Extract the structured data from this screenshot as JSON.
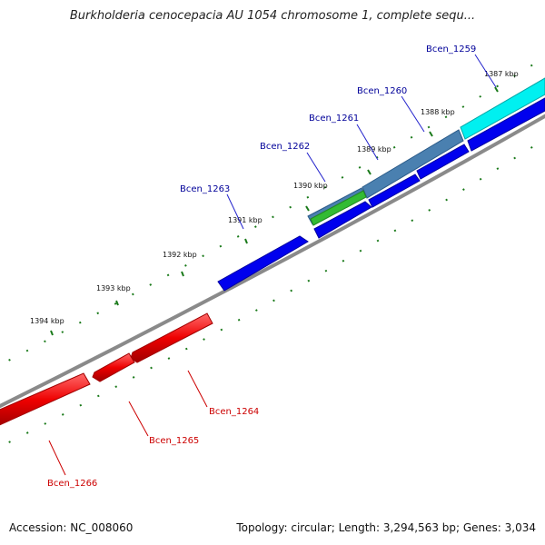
{
  "title": "Burkholderia cenocepacia AU 1054 chromosome 1, complete sequ...",
  "footer": {
    "accession": "Accession: NC_008060",
    "summary": "Topology: circular; Length: 3,294,563 bp; Genes: 3,034"
  },
  "colors": {
    "forward_gene": "#0000ee",
    "reverse_gene": "#ee0000",
    "highlight_gene": "#00ffff",
    "blended_gene": "#4477aa",
    "green_gene": "#33bb33",
    "backbone": "#808080",
    "ticks": "#1a7a1a",
    "label_forward": "#000099",
    "label_reverse": "#cc0000"
  },
  "ticks": [
    {
      "label": "1387 kbp"
    },
    {
      "label": "1388 kbp"
    },
    {
      "label": "1389 kbp"
    },
    {
      "label": "1390 kbp"
    },
    {
      "label": "1391 kbp"
    },
    {
      "label": "1392 kbp"
    },
    {
      "label": "1393 kbp"
    },
    {
      "label": "1394 kbp"
    }
  ],
  "genes_forward": [
    {
      "name": "Bcen_1259"
    },
    {
      "name": "Bcen_1260"
    },
    {
      "name": "Bcen_1261"
    },
    {
      "name": "Bcen_1262"
    },
    {
      "name": "Bcen_1263"
    }
  ],
  "genes_reverse": [
    {
      "name": "Bcen_1264"
    },
    {
      "name": "Bcen_1265"
    },
    {
      "name": "Bcen_1266"
    }
  ]
}
